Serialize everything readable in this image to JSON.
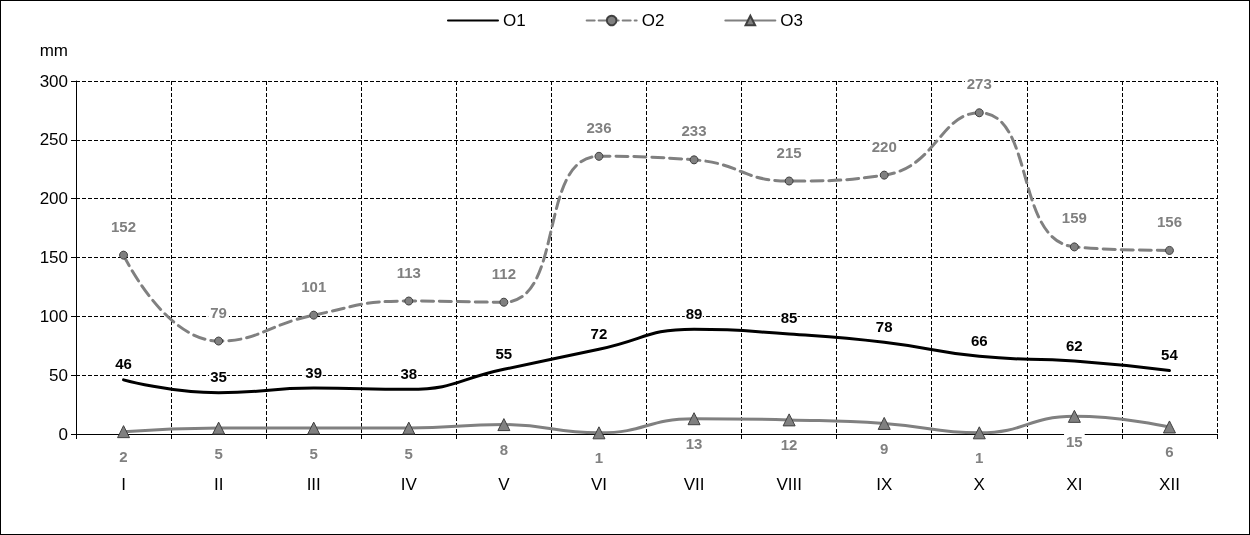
{
  "chart_data": {
    "type": "line",
    "ylabel": "mm",
    "categories": [
      "I",
      "II",
      "III",
      "IV",
      "V",
      "VI",
      "VII",
      "VIII",
      "IX",
      "X",
      "XI",
      "XII"
    ],
    "series": [
      {
        "name": "O1",
        "color": "#000000",
        "marker": "none",
        "line_style": "solid",
        "values": [
          46,
          35,
          39,
          38,
          55,
          72,
          89,
          85,
          78,
          66,
          62,
          54
        ]
      },
      {
        "name": "O2",
        "color": "#808080",
        "marker": "circle",
        "line_style": "dashed",
        "values": [
          152,
          79,
          101,
          113,
          112,
          236,
          233,
          215,
          220,
          273,
          159,
          156
        ]
      },
      {
        "name": "O3",
        "color": "#808080",
        "marker": "triangle",
        "line_style": "solid",
        "values": [
          2,
          5,
          5,
          5,
          8,
          1,
          13,
          12,
          9,
          1,
          15,
          6
        ]
      }
    ],
    "ylim": [
      0,
      300
    ],
    "yticks": [
      0,
      50,
      100,
      150,
      200,
      250,
      300
    ],
    "grid": true,
    "legend": "top",
    "data_labels": true
  }
}
